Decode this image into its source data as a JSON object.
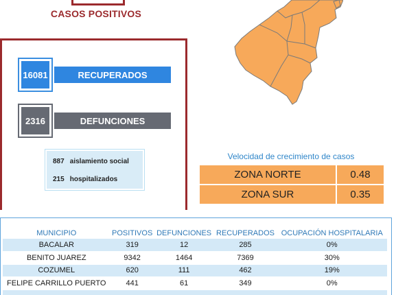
{
  "header": {
    "title": "CASOS POSITIVOS"
  },
  "recuperados": {
    "value": "16081",
    "label": "RECUPERADOS"
  },
  "defunciones": {
    "value": "2316",
    "label": "DEFUNCIONES"
  },
  "info": {
    "aislamiento": {
      "value": "887",
      "label": "aislamiento social"
    },
    "hospitalizados": {
      "value": "215",
      "label": "hospitalizados"
    }
  },
  "velocidad": {
    "title": "Velocidad de crecimiento de casos",
    "zones": [
      {
        "name": "ZONA NORTE",
        "value": "0.48"
      },
      {
        "name": "ZONA SUR",
        "value": "0.35"
      }
    ]
  },
  "colors": {
    "accent_red": "#9b2a2d",
    "blue": "#2f86e0",
    "gray": "#666a73",
    "orange": "#f7a95a",
    "row_blue": "#d4e9f7"
  },
  "table": {
    "headers": [
      "MUNICIPIO",
      "POSITIVOS",
      "DEFUNCIONES",
      "RECUPERADOS",
      "OCUPACIÓN HOSPITALARIA"
    ],
    "rows": [
      [
        "BACALAR",
        "319",
        "12",
        "285",
        "0%"
      ],
      [
        "BENITO JUAREZ",
        "9342",
        "1464",
        "7369",
        "30%"
      ],
      [
        "COZUMEL",
        "620",
        "111",
        "462",
        "19%"
      ],
      [
        "FELIPE CARRILLO PUERTO",
        "441",
        "61",
        "349",
        "0%"
      ],
      [
        "",
        "",
        "",
        "",
        ""
      ]
    ]
  }
}
